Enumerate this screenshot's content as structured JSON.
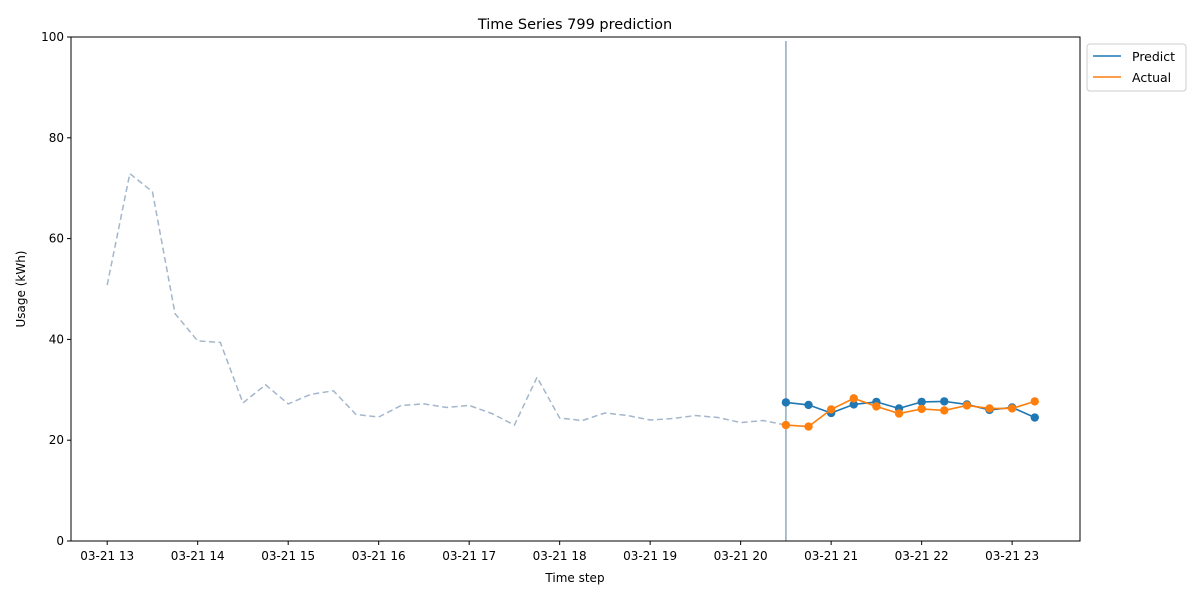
{
  "chart_data": {
    "type": "line",
    "title": "Time Series 799 prediction",
    "xlabel": "Time step",
    "ylabel": "Usage (kWh)",
    "ylim": [
      0,
      100
    ],
    "xlim": [
      12.6,
      23.75
    ],
    "x_unit": "hour of 03-21",
    "grid": false,
    "legend_position": "upper-right-outside",
    "y_ticks": [
      0,
      20,
      40,
      60,
      80,
      100
    ],
    "x_ticks": [
      {
        "value": 13,
        "label": "03-21 13"
      },
      {
        "value": 14,
        "label": "03-21 14"
      },
      {
        "value": 15,
        "label": "03-21 15"
      },
      {
        "value": 16,
        "label": "03-21 16"
      },
      {
        "value": 17,
        "label": "03-21 17"
      },
      {
        "value": 18,
        "label": "03-21 18"
      },
      {
        "value": 19,
        "label": "03-21 19"
      },
      {
        "value": 20,
        "label": "03-21 20"
      },
      {
        "value": 21,
        "label": "03-21 21"
      },
      {
        "value": 22,
        "label": "03-21 22"
      },
      {
        "value": 23,
        "label": "03-21 23"
      }
    ],
    "forecast_start": 20.5,
    "history": {
      "color": "#a3b6cc",
      "style": "dashed",
      "x": [
        13.0,
        13.25,
        13.5,
        13.75,
        14.0,
        14.25,
        14.5,
        14.75,
        15.0,
        15.25,
        15.5,
        15.75,
        16.0,
        16.25,
        16.5,
        16.75,
        17.0,
        17.25,
        17.5,
        17.75,
        18.0,
        18.25,
        18.5,
        18.75,
        19.0,
        19.25,
        19.5,
        19.75,
        20.0,
        20.25,
        20.5
      ],
      "y": [
        50.8,
        72.9,
        69.3,
        45.1,
        39.7,
        39.4,
        27.4,
        31.0,
        27.2,
        29.1,
        29.8,
        25.1,
        24.6,
        26.9,
        27.2,
        26.5,
        26.9,
        25.3,
        23.0,
        32.5,
        24.4,
        23.9,
        25.4,
        24.9,
        24.0,
        24.3,
        24.9,
        24.5,
        23.5,
        23.9,
        23.0
      ]
    },
    "series": [
      {
        "name": "Predict",
        "color": "#1f77b4",
        "x": [
          20.5,
          20.75,
          21.0,
          21.25,
          21.5,
          21.75,
          22.0,
          22.25,
          22.5,
          22.75,
          23.0,
          23.25
        ],
        "y": [
          27.5,
          27.0,
          25.4,
          27.1,
          27.6,
          26.3,
          27.6,
          27.7,
          27.1,
          26.0,
          26.5,
          24.5
        ]
      },
      {
        "name": "Actual",
        "color": "#ff7f0e",
        "x": [
          20.5,
          20.75,
          21.0,
          21.25,
          21.5,
          21.75,
          22.0,
          22.25,
          22.5,
          22.75,
          23.0,
          23.25
        ],
        "y": [
          23.0,
          22.7,
          26.1,
          28.3,
          26.7,
          25.3,
          26.2,
          25.9,
          26.9,
          26.3,
          26.3,
          27.7
        ]
      }
    ]
  }
}
